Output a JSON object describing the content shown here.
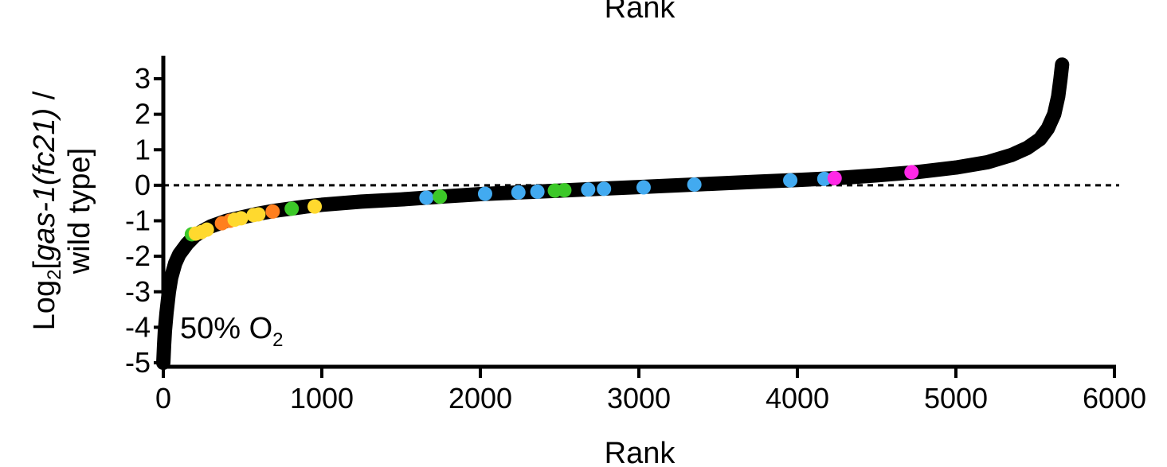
{
  "chart_data": {
    "type": "scatter",
    "top_label": "Rank",
    "xlabel": "Rank",
    "ylabel": {
      "prefix": "Log",
      "sub": "2",
      "bracket": "[",
      "italic": "gas-1(fc21)",
      "after": " /",
      "line2": "wild type]"
    },
    "annotation": {
      "text": "50% O",
      "sub": "2"
    },
    "xlim": [
      0,
      6000
    ],
    "ylim": [
      -5,
      3.6
    ],
    "x_ticks": [
      0,
      1000,
      2000,
      3000,
      4000,
      5000,
      6000
    ],
    "x_tick_labels": [
      "0",
      "1000",
      "2000",
      "3000",
      "4000",
      "5000",
      "6000"
    ],
    "y_ticks": [
      3,
      2,
      1,
      0,
      -1,
      -2,
      -3,
      -4,
      -5
    ],
    "y_tick_labels": [
      "3",
      "2",
      "1",
      "0",
      "-1",
      "-2",
      "-3",
      "-4",
      "-5"
    ],
    "reference_line": {
      "y": 0,
      "style": "dashed"
    },
    "ranked_curve": {
      "color": "#000000",
      "points": [
        [
          0,
          -5.0
        ],
        [
          5,
          -4.5
        ],
        [
          10,
          -4.1
        ],
        [
          20,
          -3.6
        ],
        [
          35,
          -3.0
        ],
        [
          50,
          -2.6
        ],
        [
          75,
          -2.2
        ],
        [
          100,
          -1.95
        ],
        [
          150,
          -1.65
        ],
        [
          200,
          -1.42
        ],
        [
          250,
          -1.28
        ],
        [
          300,
          -1.16
        ],
        [
          400,
          -1.0
        ],
        [
          500,
          -0.9
        ],
        [
          600,
          -0.8
        ],
        [
          700,
          -0.72
        ],
        [
          800,
          -0.66
        ],
        [
          900,
          -0.6
        ],
        [
          1000,
          -0.55
        ],
        [
          1250,
          -0.46
        ],
        [
          1500,
          -0.4
        ],
        [
          1750,
          -0.32
        ],
        [
          2000,
          -0.25
        ],
        [
          2250,
          -0.2
        ],
        [
          2500,
          -0.15
        ],
        [
          2750,
          -0.1
        ],
        [
          3000,
          -0.05
        ],
        [
          3250,
          0.0
        ],
        [
          3500,
          0.05
        ],
        [
          3750,
          0.1
        ],
        [
          4000,
          0.15
        ],
        [
          4250,
          0.2
        ],
        [
          4500,
          0.28
        ],
        [
          4750,
          0.37
        ],
        [
          5000,
          0.5
        ],
        [
          5200,
          0.65
        ],
        [
          5350,
          0.85
        ],
        [
          5450,
          1.05
        ],
        [
          5530,
          1.3
        ],
        [
          5580,
          1.6
        ],
        [
          5620,
          2.0
        ],
        [
          5645,
          2.5
        ],
        [
          5660,
          3.0
        ],
        [
          5670,
          3.4
        ]
      ]
    },
    "highlighted_points": [
      {
        "x": 180,
        "y": -1.38,
        "color": "#3cc828"
      },
      {
        "x": 205,
        "y": -1.36,
        "color": "#ffd92e"
      },
      {
        "x": 240,
        "y": -1.32,
        "color": "#ffd92e"
      },
      {
        "x": 275,
        "y": -1.25,
        "color": "#ffd92e"
      },
      {
        "x": 370,
        "y": -1.07,
        "color": "#ff7f1e"
      },
      {
        "x": 420,
        "y": -1.0,
        "color": "#ff7f1e"
      },
      {
        "x": 450,
        "y": -0.97,
        "color": "#ffd92e"
      },
      {
        "x": 490,
        "y": -0.93,
        "color": "#ffd92e"
      },
      {
        "x": 570,
        "y": -0.84,
        "color": "#ffd92e"
      },
      {
        "x": 600,
        "y": -0.82,
        "color": "#ffd92e"
      },
      {
        "x": 690,
        "y": -0.74,
        "color": "#ff7f1e"
      },
      {
        "x": 810,
        "y": -0.66,
        "color": "#3cc828"
      },
      {
        "x": 955,
        "y": -0.6,
        "color": "#ffd92e"
      },
      {
        "x": 1660,
        "y": -0.35,
        "color": "#42aaf0"
      },
      {
        "x": 1745,
        "y": -0.32,
        "color": "#3cc828"
      },
      {
        "x": 2030,
        "y": -0.24,
        "color": "#42aaf0"
      },
      {
        "x": 2240,
        "y": -0.2,
        "color": "#42aaf0"
      },
      {
        "x": 2360,
        "y": -0.18,
        "color": "#42aaf0"
      },
      {
        "x": 2470,
        "y": -0.15,
        "color": "#3cc828"
      },
      {
        "x": 2530,
        "y": -0.14,
        "color": "#3cc828"
      },
      {
        "x": 2680,
        "y": -0.12,
        "color": "#42aaf0"
      },
      {
        "x": 2780,
        "y": -0.1,
        "color": "#42aaf0"
      },
      {
        "x": 3030,
        "y": -0.06,
        "color": "#42aaf0"
      },
      {
        "x": 3350,
        "y": 0.02,
        "color": "#42aaf0"
      },
      {
        "x": 3955,
        "y": 0.14,
        "color": "#42aaf0"
      },
      {
        "x": 4170,
        "y": 0.18,
        "color": "#42aaf0"
      },
      {
        "x": 4235,
        "y": 0.2,
        "color": "#ff28e6"
      },
      {
        "x": 4720,
        "y": 0.37,
        "color": "#ff28e6"
      }
    ],
    "grid": false,
    "legend": "none"
  }
}
